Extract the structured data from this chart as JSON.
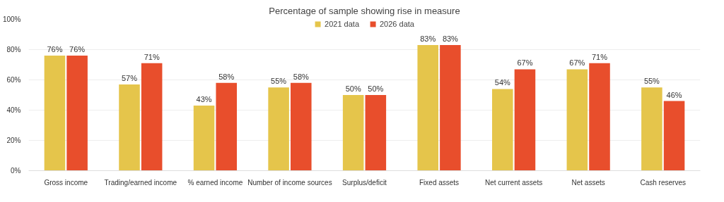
{
  "chart_data": {
    "type": "bar",
    "title": "Percentage of sample showing rise in measure",
    "categories": [
      "Gross income",
      "Trading/earned income",
      "% earned income",
      "Number of income sources",
      "Surplus/deficit",
      "Fixed assets",
      "Net current assets",
      "Net assets",
      "Cash reserves"
    ],
    "series": [
      {
        "name": "2021 data",
        "color": "#e5c54b",
        "values": [
          76,
          57,
          43,
          55,
          50,
          83,
          54,
          67,
          55
        ],
        "value_labels": [
          "76%",
          "57%",
          "43%",
          "55%",
          "50%",
          "83%",
          "54%",
          "67%",
          "55%"
        ]
      },
      {
        "name": "2026 data",
        "color": "#e84e2c",
        "values": [
          76,
          71,
          58,
          58,
          50,
          83,
          67,
          71,
          46
        ],
        "value_labels": [
          "76%",
          "71%",
          "58%",
          "58%",
          "50%",
          "83%",
          "67%",
          "71%",
          "46%"
        ]
      }
    ],
    "ylim": [
      0,
      100
    ],
    "yticks": [
      {
        "value": 0,
        "label": "0%"
      },
      {
        "value": 20,
        "label": "20%"
      },
      {
        "value": 40,
        "label": "40%"
      },
      {
        "value": 60,
        "label": "60%"
      },
      {
        "value": 80,
        "label": "80%"
      },
      {
        "value": 100,
        "label": "100%"
      }
    ],
    "grid": "y",
    "legend": "top"
  }
}
